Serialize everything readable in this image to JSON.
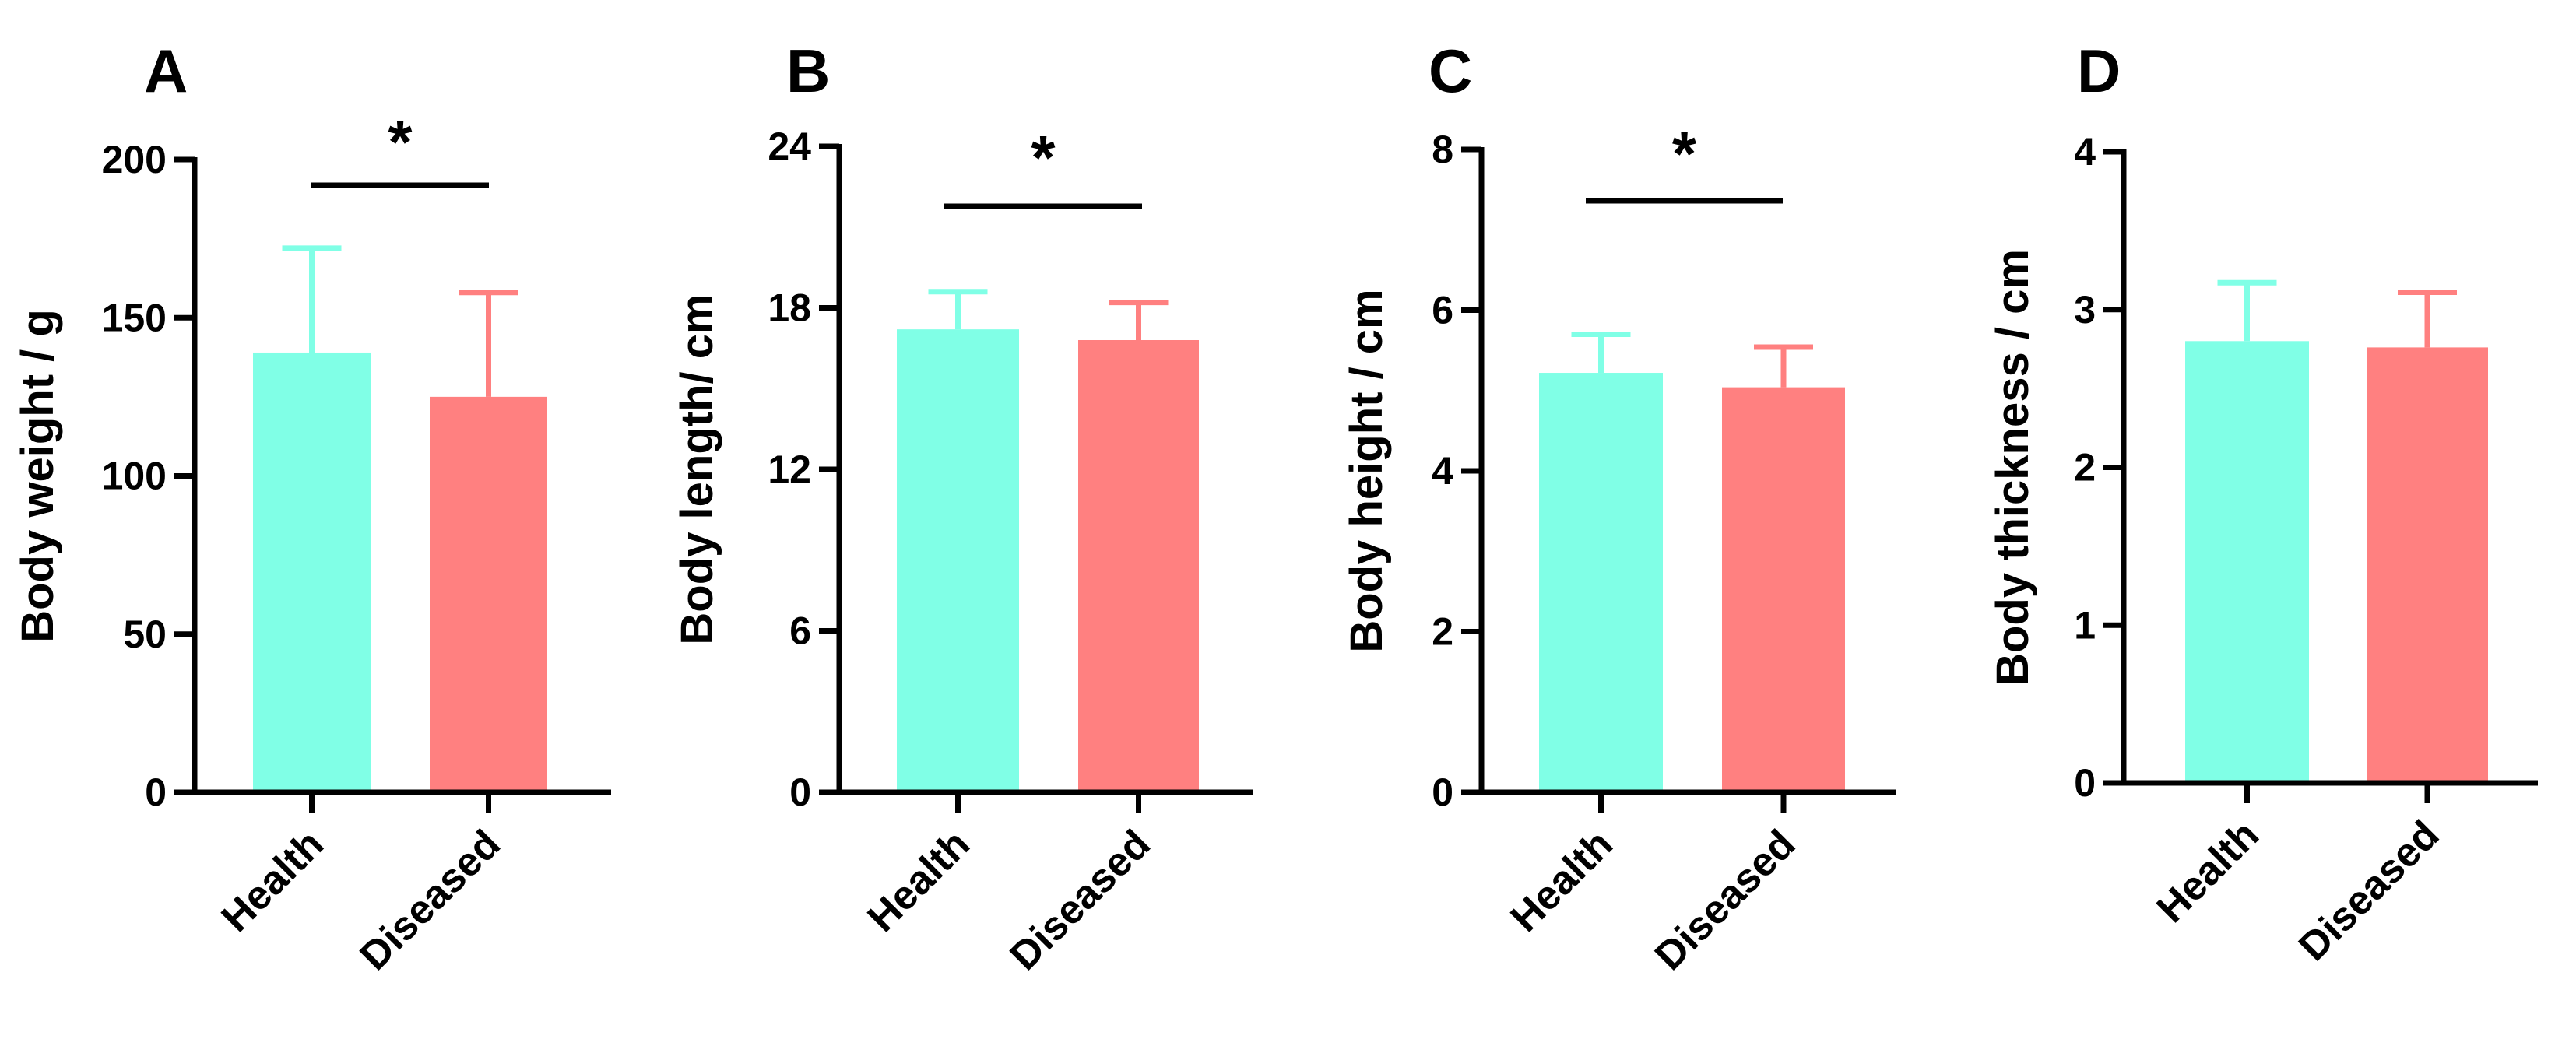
{
  "chart_data": [
    {
      "type": "bar",
      "panel": "A",
      "categories": [
        "Health",
        "Diseased"
      ],
      "values": [
        139,
        125
      ],
      "errors": [
        33,
        33
      ],
      "ylabel": "Body weight / g",
      "ylim": [
        0,
        200
      ],
      "yticks": [
        0,
        50,
        100,
        150,
        200
      ],
      "significance": "*",
      "colors": [
        "#80FFE6",
        "#FF8080"
      ]
    },
    {
      "type": "bar",
      "panel": "B",
      "categories": [
        "Health",
        "Diseased"
      ],
      "values": [
        17.2,
        16.8
      ],
      "errors": [
        1.4,
        1.4
      ],
      "ylabel": "Body length/ cm",
      "ylim": [
        0,
        24
      ],
      "yticks": [
        0,
        6,
        12,
        18,
        24
      ],
      "significance": "*",
      "colors": [
        "#80FFE6",
        "#FF8080"
      ]
    },
    {
      "type": "bar",
      "panel": "C",
      "categories": [
        "Health",
        "Diseased"
      ],
      "values": [
        5.22,
        5.04
      ],
      "errors": [
        0.48,
        0.5
      ],
      "ylabel": "Body height / cm",
      "ylim": [
        0,
        8
      ],
      "yticks": [
        0,
        2,
        4,
        6,
        8
      ],
      "significance": "*",
      "colors": [
        "#80FFE6",
        "#FF8080"
      ]
    },
    {
      "type": "bar",
      "panel": "D",
      "categories": [
        "Health",
        "Diseased"
      ],
      "values": [
        2.8,
        2.76
      ],
      "errors": [
        0.37,
        0.35
      ],
      "ylabel": "Body thickness / cm",
      "ylim": [
        0,
        4
      ],
      "yticks": [
        0,
        1,
        2,
        3,
        4
      ],
      "significance": "",
      "colors": [
        "#80FFE6",
        "#FF8080"
      ]
    }
  ]
}
